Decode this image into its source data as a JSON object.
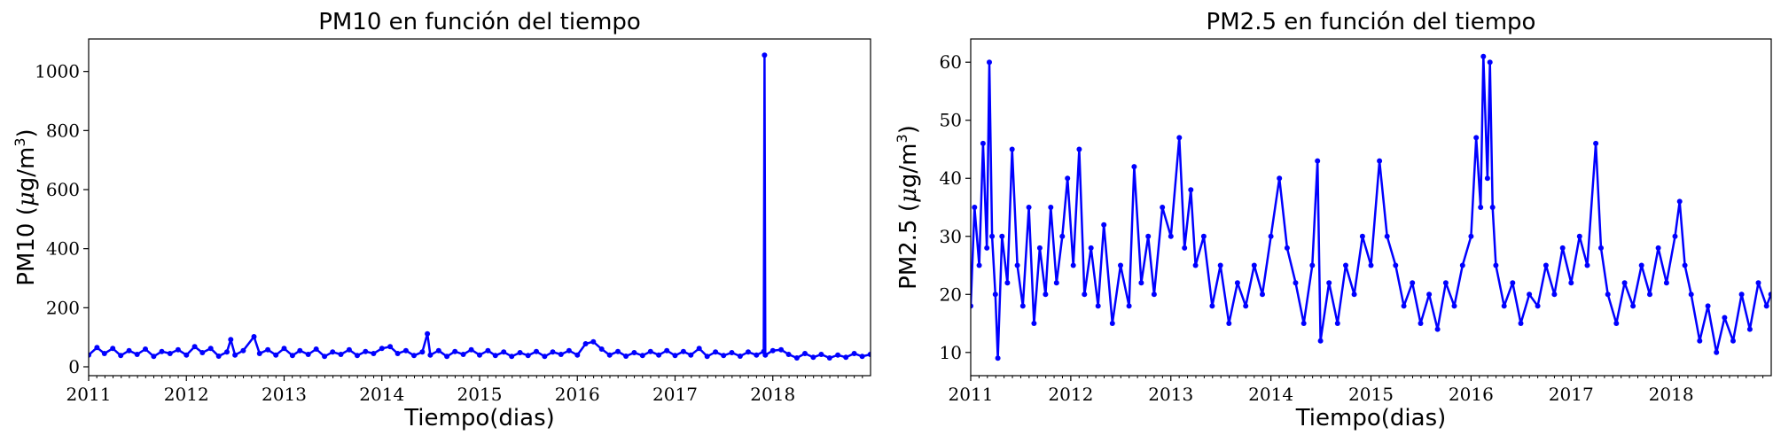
{
  "colors": {
    "series": "#0000ff",
    "axes": "#000000",
    "background": "#ffffff"
  },
  "chart_data": [
    {
      "type": "line",
      "title": "PM10 en función del tiempo",
      "xlabel": "Tiempo(dias)",
      "ylabel": "PM10 (μg/m³)",
      "ylabel_parts": {
        "pre": "PM10 (",
        "mu": "μ",
        "mid": "g/m",
        "sup": "3",
        "post": ")"
      },
      "xlim": [
        "2011-01-01",
        "2019-01-01"
      ],
      "ylim": [
        -30,
        1110
      ],
      "xticks": [
        "2011",
        "2012",
        "2013",
        "2014",
        "2015",
        "2016",
        "2017",
        "2018"
      ],
      "yticks": [
        0,
        200,
        400,
        600,
        800,
        1000
      ],
      "grid": false,
      "marker": "circle",
      "series": [
        {
          "color": "#0000ff",
          "points": [
            [
              "2011-01-01",
              40
            ],
            [
              "2011-02-01",
              65
            ],
            [
              "2011-03-01",
              45
            ],
            [
              "2011-04-01",
              62
            ],
            [
              "2011-05-01",
              38
            ],
            [
              "2011-06-01",
              55
            ],
            [
              "2011-07-01",
              42
            ],
            [
              "2011-08-01",
              60
            ],
            [
              "2011-09-01",
              35
            ],
            [
              "2011-10-01",
              52
            ],
            [
              "2011-11-01",
              45
            ],
            [
              "2011-12-01",
              58
            ],
            [
              "2012-01-01",
              40
            ],
            [
              "2012-02-01",
              68
            ],
            [
              "2012-03-01",
              48
            ],
            [
              "2012-04-01",
              62
            ],
            [
              "2012-05-01",
              36
            ],
            [
              "2012-06-01",
              50
            ],
            [
              "2012-06-15",
              92
            ],
            [
              "2012-07-01",
              40
            ],
            [
              "2012-08-01",
              55
            ],
            [
              "2012-09-10",
              102
            ],
            [
              "2012-10-01",
              45
            ],
            [
              "2012-11-01",
              58
            ],
            [
              "2012-12-01",
              40
            ],
            [
              "2013-01-01",
              62
            ],
            [
              "2013-02-01",
              38
            ],
            [
              "2013-03-01",
              55
            ],
            [
              "2013-04-01",
              42
            ],
            [
              "2013-05-01",
              60
            ],
            [
              "2013-06-01",
              35
            ],
            [
              "2013-07-01",
              50
            ],
            [
              "2013-08-01",
              42
            ],
            [
              "2013-09-01",
              58
            ],
            [
              "2013-10-01",
              38
            ],
            [
              "2013-11-01",
              52
            ],
            [
              "2013-12-01",
              45
            ],
            [
              "2014-01-01",
              62
            ],
            [
              "2014-02-01",
              68
            ],
            [
              "2014-03-01",
              45
            ],
            [
              "2014-04-01",
              55
            ],
            [
              "2014-05-01",
              38
            ],
            [
              "2014-06-01",
              50
            ],
            [
              "2014-06-20",
              112
            ],
            [
              "2014-07-01",
              40
            ],
            [
              "2014-08-01",
              55
            ],
            [
              "2014-09-01",
              35
            ],
            [
              "2014-10-01",
              52
            ],
            [
              "2014-11-01",
              42
            ],
            [
              "2014-12-01",
              58
            ],
            [
              "2015-01-01",
              40
            ],
            [
              "2015-02-01",
              55
            ],
            [
              "2015-03-01",
              38
            ],
            [
              "2015-04-01",
              50
            ],
            [
              "2015-05-01",
              35
            ],
            [
              "2015-06-01",
              48
            ],
            [
              "2015-07-01",
              38
            ],
            [
              "2015-08-01",
              52
            ],
            [
              "2015-09-01",
              35
            ],
            [
              "2015-10-01",
              50
            ],
            [
              "2015-11-01",
              42
            ],
            [
              "2015-12-01",
              55
            ],
            [
              "2016-01-01",
              40
            ],
            [
              "2016-02-01",
              78
            ],
            [
              "2016-03-01",
              85
            ],
            [
              "2016-04-01",
              60
            ],
            [
              "2016-05-01",
              40
            ],
            [
              "2016-06-01",
              52
            ],
            [
              "2016-07-01",
              36
            ],
            [
              "2016-08-01",
              48
            ],
            [
              "2016-09-01",
              38
            ],
            [
              "2016-10-01",
              52
            ],
            [
              "2016-11-01",
              40
            ],
            [
              "2016-12-01",
              55
            ],
            [
              "2017-01-01",
              38
            ],
            [
              "2017-02-01",
              52
            ],
            [
              "2017-03-01",
              40
            ],
            [
              "2017-04-01",
              62
            ],
            [
              "2017-05-01",
              35
            ],
            [
              "2017-06-01",
              50
            ],
            [
              "2017-07-01",
              38
            ],
            [
              "2017-08-01",
              48
            ],
            [
              "2017-09-01",
              36
            ],
            [
              "2017-10-01",
              50
            ],
            [
              "2017-11-01",
              40
            ],
            [
              "2017-11-28",
              52
            ],
            [
              "2017-12-01",
              1055
            ],
            [
              "2017-12-04",
              40
            ],
            [
              "2018-01-01",
              55
            ],
            [
              "2018-02-01",
              58
            ],
            [
              "2018-03-01",
              42
            ],
            [
              "2018-04-01",
              30
            ],
            [
              "2018-05-01",
              45
            ],
            [
              "2018-06-01",
              32
            ],
            [
              "2018-07-01",
              42
            ],
            [
              "2018-08-01",
              30
            ],
            [
              "2018-09-01",
              40
            ],
            [
              "2018-10-01",
              32
            ],
            [
              "2018-11-01",
              45
            ],
            [
              "2018-12-01",
              35
            ],
            [
              "2018-12-31",
              42
            ]
          ]
        }
      ]
    },
    {
      "type": "line",
      "title": "PM2.5 en función del tiempo",
      "xlabel": "Tiempo(dias)",
      "ylabel": "PM2.5 (μg/m³)",
      "ylabel_parts": {
        "pre": "PM2.5 (",
        "mu": "μ",
        "mid": "g/m",
        "sup": "3",
        "post": ")"
      },
      "xlim": [
        "2011-01-01",
        "2019-01-01"
      ],
      "ylim": [
        6,
        64
      ],
      "xticks": [
        "2011",
        "2012",
        "2013",
        "2014",
        "2015",
        "2016",
        "2017",
        "2018"
      ],
      "yticks": [
        10,
        20,
        30,
        40,
        50,
        60
      ],
      "grid": false,
      "marker": "circle",
      "series": [
        {
          "color": "#0000ff",
          "points": [
            [
              "2011-01-01",
              18
            ],
            [
              "2011-01-15",
              35
            ],
            [
              "2011-02-01",
              25
            ],
            [
              "2011-02-15",
              46
            ],
            [
              "2011-03-01",
              28
            ],
            [
              "2011-03-10",
              60
            ],
            [
              "2011-03-20",
              30
            ],
            [
              "2011-04-01",
              20
            ],
            [
              "2011-04-10",
              9
            ],
            [
              "2011-04-25",
              30
            ],
            [
              "2011-05-15",
              22
            ],
            [
              "2011-06-01",
              45
            ],
            [
              "2011-06-20",
              25
            ],
            [
              "2011-07-10",
              18
            ],
            [
              "2011-08-01",
              35
            ],
            [
              "2011-08-20",
              15
            ],
            [
              "2011-09-10",
              28
            ],
            [
              "2011-10-01",
              20
            ],
            [
              "2011-10-20",
              35
            ],
            [
              "2011-11-10",
              22
            ],
            [
              "2011-12-01",
              30
            ],
            [
              "2011-12-20",
              40
            ],
            [
              "2012-01-10",
              25
            ],
            [
              "2012-02-01",
              45
            ],
            [
              "2012-02-20",
              20
            ],
            [
              "2012-03-15",
              28
            ],
            [
              "2012-04-10",
              18
            ],
            [
              "2012-05-01",
              32
            ],
            [
              "2012-06-01",
              15
            ],
            [
              "2012-07-01",
              25
            ],
            [
              "2012-08-01",
              18
            ],
            [
              "2012-08-20",
              42
            ],
            [
              "2012-09-15",
              22
            ],
            [
              "2012-10-10",
              30
            ],
            [
              "2012-11-01",
              20
            ],
            [
              "2012-12-01",
              35
            ],
            [
              "2013-01-01",
              30
            ],
            [
              "2013-02-01",
              47
            ],
            [
              "2013-02-20",
              28
            ],
            [
              "2013-03-15",
              38
            ],
            [
              "2013-04-01",
              25
            ],
            [
              "2013-05-01",
              30
            ],
            [
              "2013-06-01",
              18
            ],
            [
              "2013-07-01",
              25
            ],
            [
              "2013-08-01",
              15
            ],
            [
              "2013-09-01",
              22
            ],
            [
              "2013-10-01",
              18
            ],
            [
              "2013-11-01",
              25
            ],
            [
              "2013-12-01",
              20
            ],
            [
              "2014-01-01",
              30
            ],
            [
              "2014-02-01",
              40
            ],
            [
              "2014-03-01",
              28
            ],
            [
              "2014-04-01",
              22
            ],
            [
              "2014-05-01",
              15
            ],
            [
              "2014-06-01",
              25
            ],
            [
              "2014-06-20",
              43
            ],
            [
              "2014-07-01",
              12
            ],
            [
              "2014-08-01",
              22
            ],
            [
              "2014-09-01",
              15
            ],
            [
              "2014-10-01",
              25
            ],
            [
              "2014-11-01",
              20
            ],
            [
              "2014-12-01",
              30
            ],
            [
              "2015-01-01",
              25
            ],
            [
              "2015-02-01",
              43
            ],
            [
              "2015-03-01",
              30
            ],
            [
              "2015-04-01",
              25
            ],
            [
              "2015-05-01",
              18
            ],
            [
              "2015-06-01",
              22
            ],
            [
              "2015-07-01",
              15
            ],
            [
              "2015-08-01",
              20
            ],
            [
              "2015-09-01",
              14
            ],
            [
              "2015-10-01",
              22
            ],
            [
              "2015-11-01",
              18
            ],
            [
              "2015-12-01",
              25
            ],
            [
              "2016-01-01",
              30
            ],
            [
              "2016-01-20",
              47
            ],
            [
              "2016-02-05",
              35
            ],
            [
              "2016-02-15",
              61
            ],
            [
              "2016-03-01",
              40
            ],
            [
              "2016-03-10",
              60
            ],
            [
              "2016-03-20",
              35
            ],
            [
              "2016-04-01",
              25
            ],
            [
              "2016-05-01",
              18
            ],
            [
              "2016-06-01",
              22
            ],
            [
              "2016-07-01",
              15
            ],
            [
              "2016-08-01",
              20
            ],
            [
              "2016-09-01",
              18
            ],
            [
              "2016-10-01",
              25
            ],
            [
              "2016-11-01",
              20
            ],
            [
              "2016-12-01",
              28
            ],
            [
              "2017-01-01",
              22
            ],
            [
              "2017-02-01",
              30
            ],
            [
              "2017-03-01",
              25
            ],
            [
              "2017-04-01",
              46
            ],
            [
              "2017-04-20",
              28
            ],
            [
              "2017-05-15",
              20
            ],
            [
              "2017-06-15",
              15
            ],
            [
              "2017-07-15",
              22
            ],
            [
              "2017-08-15",
              18
            ],
            [
              "2017-09-15",
              25
            ],
            [
              "2017-10-15",
              20
            ],
            [
              "2017-11-15",
              28
            ],
            [
              "2017-12-15",
              22
            ],
            [
              "2018-01-15",
              30
            ],
            [
              "2018-02-01",
              36
            ],
            [
              "2018-02-20",
              25
            ],
            [
              "2018-03-15",
              20
            ],
            [
              "2018-04-15",
              12
            ],
            [
              "2018-05-15",
              18
            ],
            [
              "2018-06-15",
              10
            ],
            [
              "2018-07-15",
              16
            ],
            [
              "2018-08-15",
              12
            ],
            [
              "2018-09-15",
              20
            ],
            [
              "2018-10-15",
              14
            ],
            [
              "2018-11-15",
              22
            ],
            [
              "2018-12-15",
              18
            ],
            [
              "2018-12-31",
              20
            ]
          ]
        }
      ]
    }
  ]
}
